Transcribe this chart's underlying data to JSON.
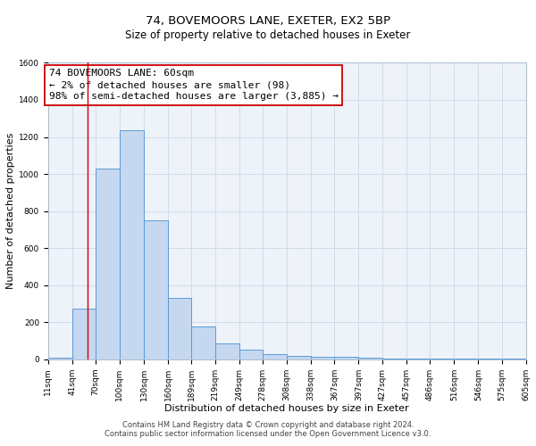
{
  "title": "74, BOVEMOORS LANE, EXETER, EX2 5BP",
  "subtitle": "Size of property relative to detached houses in Exeter",
  "xlabel": "Distribution of detached houses by size in Exeter",
  "ylabel": "Number of detached properties",
  "bin_edges": [
    11,
    41,
    70,
    100,
    130,
    160,
    189,
    219,
    249,
    278,
    308,
    338,
    367,
    397,
    427,
    457,
    486,
    516,
    546,
    575,
    605
  ],
  "bin_counts": [
    10,
    275,
    1030,
    1235,
    750,
    330,
    175,
    85,
    50,
    30,
    20,
    15,
    15,
    10,
    5,
    5,
    5,
    5,
    5,
    5
  ],
  "bar_color": "#c5d8f0",
  "bar_edge_color": "#5b9bd5",
  "vline_x": 60,
  "vline_color": "#cc0000",
  "annotation_line1": "74 BOVEMOORS LANE: 60sqm",
  "annotation_line2": "← 2% of detached houses are smaller (98)",
  "annotation_line3": "98% of semi-detached houses are larger (3,885) →",
  "ylim": [
    0,
    1600
  ],
  "yticks": [
    0,
    200,
    400,
    600,
    800,
    1000,
    1200,
    1400,
    1600
  ],
  "tick_labels": [
    "11sqm",
    "41sqm",
    "70sqm",
    "100sqm",
    "130sqm",
    "160sqm",
    "189sqm",
    "219sqm",
    "249sqm",
    "278sqm",
    "308sqm",
    "338sqm",
    "367sqm",
    "397sqm",
    "427sqm",
    "457sqm",
    "486sqm",
    "516sqm",
    "546sqm",
    "575sqm",
    "605sqm"
  ],
  "footer1": "Contains HM Land Registry data © Crown copyright and database right 2024.",
  "footer2": "Contains public sector information licensed under the Open Government Licence v3.0.",
  "title_fontsize": 9.5,
  "subtitle_fontsize": 8.5,
  "xlabel_fontsize": 8,
  "ylabel_fontsize": 8,
  "tick_fontsize": 6.5,
  "annotation_fontsize": 8,
  "footer_fontsize": 6,
  "grid_color": "#cdd8ec",
  "bg_color": "#eef2f9"
}
